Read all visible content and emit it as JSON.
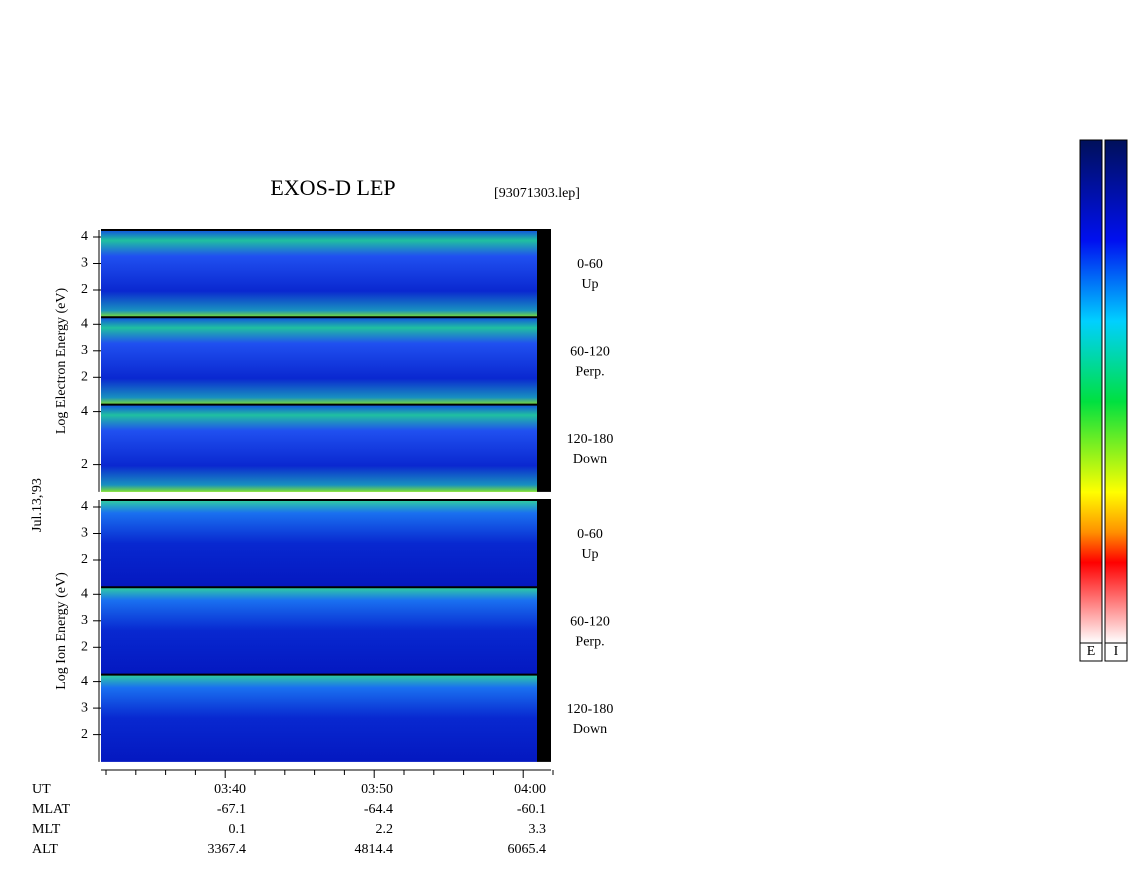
{
  "title": "EXOS-D LEP",
  "file": "[93071303.lep]",
  "date": "Jul.13,'93",
  "groups": [
    {
      "axis_label": "Log Electron Energy (eV)",
      "panels": [
        {
          "ticks": [
            "4",
            "3",
            "2"
          ],
          "angle": "0-60",
          "direction": "Up"
        },
        {
          "ticks": [
            "4",
            "3",
            "2"
          ],
          "angle": "60-120",
          "direction": "Perp."
        },
        {
          "ticks": [
            "4",
            "2"
          ],
          "angle": "120-180",
          "direction": "Down"
        }
      ]
    },
    {
      "axis_label": "Log Ion Energy (eV)",
      "panels": [
        {
          "ticks": [
            "4",
            "3",
            "2"
          ],
          "angle": "0-60",
          "direction": "Up"
        },
        {
          "ticks": [
            "4",
            "3",
            "2"
          ],
          "angle": "60-120",
          "direction": "Perp."
        },
        {
          "ticks": [
            "4",
            "3",
            "2"
          ],
          "angle": "120-180",
          "direction": "Down"
        }
      ]
    }
  ],
  "x_axis": {
    "rows": [
      {
        "name": "UT",
        "values": [
          "03:40",
          "03:50",
          "04:00"
        ]
      },
      {
        "name": "MLAT",
        "values": [
          "-67.1",
          "-64.4",
          "-60.1"
        ]
      },
      {
        "name": "MLT",
        "values": [
          "0.1",
          "2.2",
          "3.3"
        ]
      },
      {
        "name": "ALT",
        "values": [
          "3367.4",
          "4814.4",
          "6065.4"
        ]
      }
    ]
  },
  "color_bars": [
    "E",
    "I"
  ]
}
